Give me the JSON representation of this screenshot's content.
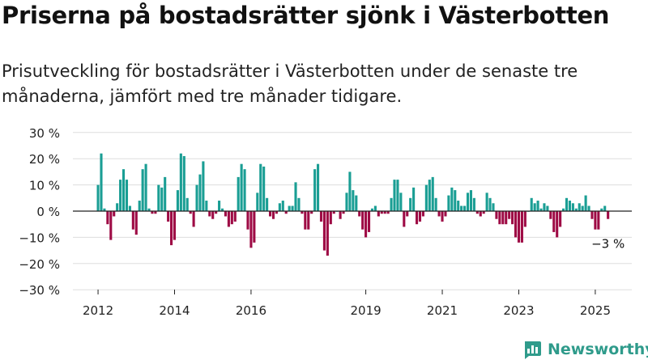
{
  "title": "Priserna på bostadsrätter sjönk i Västerbotten",
  "subtitle": "Prisutveckling för bostadsrätter i Västerbotten under de senaste tre månaderna, jämfört med tre månader tidigare.",
  "brand": "Newsworthy",
  "colors": {
    "positive": "#1a9e94",
    "negative": "#9e0b45",
    "grid": "#dddddd",
    "axis": "#222222",
    "brand": "#2f9b8b"
  },
  "chart_data": {
    "type": "bar",
    "unit": "%",
    "ylim": [
      -30,
      30
    ],
    "yticks": [
      30,
      20,
      10,
      0,
      -10,
      -20,
      -30
    ],
    "ytick_labels": [
      "30 %",
      "20 %",
      "10 %",
      "0 %",
      "−10 %",
      "−20 %",
      "−30 %"
    ],
    "xtick_labels": [
      "2012",
      "2014",
      "2016",
      "2019",
      "2021",
      "2023",
      "2025"
    ],
    "grid": true,
    "last_value_label": "−3 %",
    "series": [
      {
        "values": [
          10,
          22,
          1,
          -5,
          -11,
          -2,
          3,
          12,
          16,
          12,
          2,
          -7,
          -9,
          4,
          16,
          18,
          1,
          -1,
          -1,
          10,
          9,
          13,
          -4,
          -13,
          -11,
          8,
          22,
          21,
          5,
          -1,
          -6,
          10,
          14,
          19,
          4,
          -2,
          -3,
          -1,
          4,
          1,
          -2,
          -6,
          -5,
          -4,
          13,
          18,
          16,
          -7,
          -14,
          -12,
          7,
          18,
          17,
          5,
          -2,
          -3,
          -1,
          3,
          4,
          -1,
          2,
          2,
          11,
          5,
          -1,
          -7,
          -7,
          -1,
          16,
          18,
          -4,
          -15,
          -17,
          -5,
          -1,
          0,
          -3,
          -1,
          7,
          15,
          8,
          6,
          -2,
          -7,
          -10,
          -8,
          1,
          2,
          -2,
          -1,
          -1,
          -1,
          5,
          12,
          12,
          7,
          -6,
          -2,
          5,
          9,
          -5,
          -4,
          -2,
          10,
          12,
          13,
          5,
          -2,
          -4,
          -2,
          6,
          9,
          8,
          4,
          2,
          2,
          7,
          8,
          5,
          -1,
          -2,
          -1,
          7,
          5,
          3,
          -3,
          -5,
          -5,
          -5,
          -3,
          -5,
          -10,
          -12,
          -12,
          -6,
          0,
          5,
          3,
          4,
          1,
          3,
          2,
          -3,
          -8,
          -10,
          -6,
          1,
          5,
          4,
          3,
          1,
          3,
          2,
          6,
          2,
          -3,
          -7,
          -7,
          1,
          2,
          -3
        ]
      }
    ]
  }
}
